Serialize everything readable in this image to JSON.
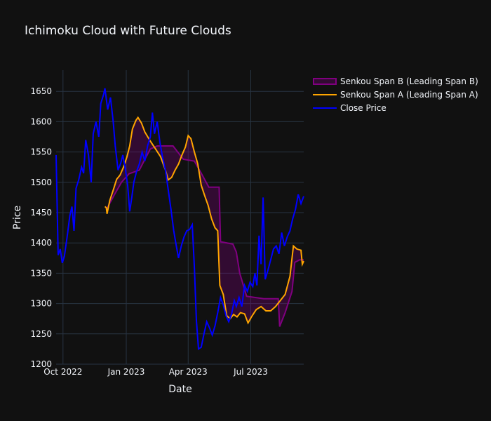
{
  "title": "Ichimoku Cloud with Future Clouds",
  "colors": {
    "background": "#111111",
    "grid": "#283442",
    "close": "#0000ff",
    "spanA": "#ffa500",
    "spanB": "#800080",
    "cloud": "rgba(128,0,128,0.3)"
  },
  "chart_data": {
    "type": "line",
    "xlabel": "Date",
    "ylabel": "Price",
    "xlim": [
      "2022-09-21",
      "2023-09-16"
    ],
    "ylim": [
      1200,
      1685
    ],
    "x_ticks": [
      {
        "date": "2022-10-01",
        "label": "Oct 2022"
      },
      {
        "date": "2023-01-01",
        "label": "Jan 2023"
      },
      {
        "date": "2023-04-01",
        "label": "Apr 2023"
      },
      {
        "date": "2023-07-01",
        "label": "Jul 2023"
      }
    ],
    "y_ticks": [
      1200,
      1250,
      1300,
      1350,
      1400,
      1450,
      1500,
      1550,
      1600,
      1650
    ],
    "grid": true,
    "legend_position": "top-right",
    "series": [
      {
        "name": "Senkou Span B (Leading Span B)",
        "role": "spanB",
        "points": [
          [
            "2022-12-03",
            1455
          ],
          [
            "2022-12-15",
            1480
          ],
          [
            "2022-12-25",
            1500
          ],
          [
            "2023-01-05",
            1514
          ],
          [
            "2023-01-20",
            1520
          ],
          [
            "2023-02-05",
            1555
          ],
          [
            "2023-02-15",
            1560
          ],
          [
            "2023-03-10",
            1560
          ],
          [
            "2023-03-25",
            1538
          ],
          [
            "2023-04-10",
            1535
          ],
          [
            "2023-04-20",
            1515
          ],
          [
            "2023-05-01",
            1492
          ],
          [
            "2023-05-16",
            1492
          ],
          [
            "2023-05-18",
            1402
          ],
          [
            "2023-06-05",
            1398
          ],
          [
            "2023-06-10",
            1385
          ],
          [
            "2023-06-15",
            1350
          ],
          [
            "2023-06-25",
            1312
          ],
          [
            "2023-07-20",
            1308
          ],
          [
            "2023-08-10",
            1308
          ],
          [
            "2023-08-12",
            1262
          ],
          [
            "2023-08-20",
            1285
          ],
          [
            "2023-08-30",
            1320
          ],
          [
            "2023-09-03",
            1368
          ],
          [
            "2023-09-10",
            1372
          ],
          [
            "2023-09-16",
            1372
          ]
        ]
      },
      {
        "name": "Senkou Span A (Leading Span A)",
        "role": "spanA",
        "points": [
          [
            "2022-12-01",
            1460
          ],
          [
            "2022-12-03",
            1458
          ],
          [
            "2022-12-04",
            1448
          ],
          [
            "2022-12-08",
            1470
          ],
          [
            "2022-12-13",
            1487
          ],
          [
            "2022-12-18",
            1505
          ],
          [
            "2022-12-23",
            1512
          ],
          [
            "2022-12-28",
            1525
          ],
          [
            "2023-01-02",
            1542
          ],
          [
            "2023-01-06",
            1560
          ],
          [
            "2023-01-10",
            1588
          ],
          [
            "2023-01-15",
            1602
          ],
          [
            "2023-01-18",
            1607
          ],
          [
            "2023-01-23",
            1598
          ],
          [
            "2023-01-28",
            1583
          ],
          [
            "2023-02-05",
            1568
          ],
          [
            "2023-02-12",
            1556
          ],
          [
            "2023-02-20",
            1542
          ],
          [
            "2023-02-27",
            1520
          ],
          [
            "2023-03-03",
            1504
          ],
          [
            "2023-03-08",
            1508
          ],
          [
            "2023-03-13",
            1520
          ],
          [
            "2023-03-18",
            1530
          ],
          [
            "2023-03-23",
            1545
          ],
          [
            "2023-03-28",
            1558
          ],
          [
            "2023-04-01",
            1577
          ],
          [
            "2023-04-05",
            1572
          ],
          [
            "2023-04-10",
            1550
          ],
          [
            "2023-04-15",
            1530
          ],
          [
            "2023-04-20",
            1495
          ],
          [
            "2023-04-25",
            1478
          ],
          [
            "2023-04-30",
            1462
          ],
          [
            "2023-05-05",
            1440
          ],
          [
            "2023-05-10",
            1425
          ],
          [
            "2023-05-14",
            1420
          ],
          [
            "2023-05-17",
            1330
          ],
          [
            "2023-05-22",
            1315
          ],
          [
            "2023-05-27",
            1280
          ],
          [
            "2023-06-01",
            1275
          ],
          [
            "2023-06-06",
            1282
          ],
          [
            "2023-06-11",
            1278
          ],
          [
            "2023-06-16",
            1285
          ],
          [
            "2023-06-22",
            1283
          ],
          [
            "2023-06-27",
            1268
          ],
          [
            "2023-07-02",
            1278
          ],
          [
            "2023-07-09",
            1290
          ],
          [
            "2023-07-16",
            1295
          ],
          [
            "2023-07-23",
            1288
          ],
          [
            "2023-07-30",
            1288
          ],
          [
            "2023-08-06",
            1295
          ],
          [
            "2023-08-13",
            1305
          ],
          [
            "2023-08-20",
            1315
          ],
          [
            "2023-08-27",
            1345
          ],
          [
            "2023-09-01",
            1395
          ],
          [
            "2023-09-06",
            1390
          ],
          [
            "2023-09-12",
            1388
          ],
          [
            "2023-09-14",
            1365
          ],
          [
            "2023-09-16",
            1370
          ]
        ]
      },
      {
        "name": "Close Price",
        "role": "close",
        "points": [
          [
            "2022-09-21",
            1545
          ],
          [
            "2022-09-24",
            1380
          ],
          [
            "2022-09-27",
            1390
          ],
          [
            "2022-09-30",
            1367
          ],
          [
            "2022-10-03",
            1378
          ],
          [
            "2022-10-07",
            1410
          ],
          [
            "2022-10-11",
            1445
          ],
          [
            "2022-10-14",
            1460
          ],
          [
            "2022-10-17",
            1420
          ],
          [
            "2022-10-20",
            1490
          ],
          [
            "2022-10-24",
            1505
          ],
          [
            "2022-10-28",
            1525
          ],
          [
            "2022-10-31",
            1515
          ],
          [
            "2022-11-03",
            1570
          ],
          [
            "2022-11-07",
            1545
          ],
          [
            "2022-11-11",
            1500
          ],
          [
            "2022-11-14",
            1580
          ],
          [
            "2022-11-18",
            1600
          ],
          [
            "2022-11-22",
            1575
          ],
          [
            "2022-11-25",
            1630
          ],
          [
            "2022-11-29",
            1645
          ],
          [
            "2022-12-01",
            1655
          ],
          [
            "2022-12-05",
            1620
          ],
          [
            "2022-12-09",
            1640
          ],
          [
            "2022-12-13",
            1600
          ],
          [
            "2022-12-16",
            1560
          ],
          [
            "2022-12-20",
            1520
          ],
          [
            "2022-12-24",
            1532
          ],
          [
            "2022-12-27",
            1545
          ],
          [
            "2022-12-31",
            1520
          ],
          [
            "2023-01-03",
            1495
          ],
          [
            "2023-01-06",
            1452
          ],
          [
            "2023-01-09",
            1475
          ],
          [
            "2023-01-12",
            1500
          ],
          [
            "2023-01-16",
            1518
          ],
          [
            "2023-01-20",
            1530
          ],
          [
            "2023-01-24",
            1550
          ],
          [
            "2023-01-28",
            1535
          ],
          [
            "2023-02-01",
            1560
          ],
          [
            "2023-02-05",
            1575
          ],
          [
            "2023-02-08",
            1615
          ],
          [
            "2023-02-11",
            1580
          ],
          [
            "2023-02-15",
            1600
          ],
          [
            "2023-02-19",
            1565
          ],
          [
            "2023-02-23",
            1540
          ],
          [
            "2023-02-27",
            1520
          ],
          [
            "2023-03-03",
            1488
          ],
          [
            "2023-03-07",
            1455
          ],
          [
            "2023-03-11",
            1420
          ],
          [
            "2023-03-14",
            1400
          ],
          [
            "2023-03-18",
            1375
          ],
          [
            "2023-03-22",
            1395
          ],
          [
            "2023-03-26",
            1410
          ],
          [
            "2023-03-30",
            1420
          ],
          [
            "2023-04-03",
            1422
          ],
          [
            "2023-04-07",
            1430
          ],
          [
            "2023-04-10",
            1360
          ],
          [
            "2023-04-13",
            1272
          ],
          [
            "2023-04-16",
            1225
          ],
          [
            "2023-04-20",
            1228
          ],
          [
            "2023-04-24",
            1250
          ],
          [
            "2023-04-28",
            1270
          ],
          [
            "2023-05-02",
            1260
          ],
          [
            "2023-05-06",
            1248
          ],
          [
            "2023-05-10",
            1263
          ],
          [
            "2023-05-14",
            1285
          ],
          [
            "2023-05-18",
            1310
          ],
          [
            "2023-05-22",
            1298
          ],
          [
            "2023-05-26",
            1280
          ],
          [
            "2023-05-30",
            1270
          ],
          [
            "2023-06-03",
            1282
          ],
          [
            "2023-06-07",
            1305
          ],
          [
            "2023-06-10",
            1295
          ],
          [
            "2023-06-14",
            1310
          ],
          [
            "2023-06-18",
            1295
          ],
          [
            "2023-06-22",
            1330
          ],
          [
            "2023-06-26",
            1320
          ],
          [
            "2023-06-30",
            1335
          ],
          [
            "2023-07-04",
            1328
          ],
          [
            "2023-07-07",
            1350
          ],
          [
            "2023-07-10",
            1330
          ],
          [
            "2023-07-13",
            1412
          ],
          [
            "2023-07-16",
            1365
          ],
          [
            "2023-07-19",
            1475
          ],
          [
            "2023-07-22",
            1340
          ],
          [
            "2023-07-26",
            1355
          ],
          [
            "2023-07-30",
            1372
          ],
          [
            "2023-08-03",
            1390
          ],
          [
            "2023-08-07",
            1395
          ],
          [
            "2023-08-11",
            1382
          ],
          [
            "2023-08-15",
            1417
          ],
          [
            "2023-08-19",
            1395
          ],
          [
            "2023-08-23",
            1410
          ],
          [
            "2023-08-27",
            1420
          ],
          [
            "2023-08-31",
            1440
          ],
          [
            "2023-09-04",
            1455
          ],
          [
            "2023-09-08",
            1480
          ],
          [
            "2023-09-12",
            1465
          ],
          [
            "2023-09-16",
            1477
          ]
        ]
      }
    ]
  }
}
